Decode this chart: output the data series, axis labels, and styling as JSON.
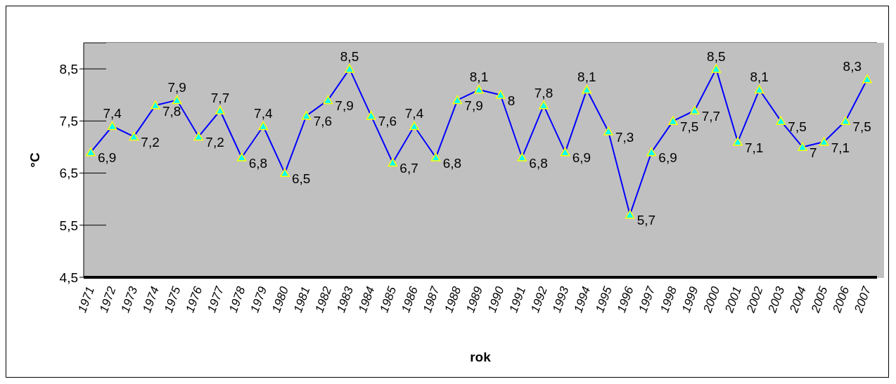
{
  "chart_data": {
    "type": "line",
    "xlabel": "rok",
    "ylabel": "°C",
    "categories": [
      "1971",
      "1972",
      "1973",
      "1974",
      "1975",
      "1976",
      "1977",
      "1978",
      "1979",
      "1980",
      "1981",
      "1982",
      "1983",
      "1984",
      "1985",
      "1986",
      "1987",
      "1988",
      "1989",
      "1990",
      "1991",
      "1992",
      "1993",
      "1994",
      "1995",
      "1996",
      "1997",
      "1998",
      "1999",
      "2000",
      "2001",
      "2002",
      "2003",
      "2004",
      "2005",
      "2006",
      "2007"
    ],
    "series": [
      {
        "color": "#0000ff",
        "values": [
          6.9,
          7.4,
          7.2,
          7.8,
          7.9,
          7.2,
          7.7,
          6.8,
          7.4,
          6.5,
          7.6,
          7.9,
          8.5,
          7.6,
          6.7,
          7.4,
          6.8,
          7.9,
          8.1,
          8,
          6.8,
          7.8,
          6.9,
          8.1,
          7.3,
          5.7,
          6.9,
          7.5,
          7.7,
          8.5,
          7.1,
          8.1,
          7.5,
          7,
          7.1,
          7.5,
          8.3
        ],
        "value_labels": [
          "6,9",
          "7,4",
          "7,2",
          "7,8",
          "7,9",
          "7,2",
          "7,7",
          "6,8",
          "7,4",
          "6,5",
          "7,6",
          "7,9",
          "8,5",
          "7,6",
          "6,7",
          "7,4",
          "6,8",
          "7,9",
          "8,1",
          "8",
          "6,8",
          "7,8",
          "6,9",
          "8,1",
          "7,3",
          "5,7",
          "6,9",
          "7,5",
          "7,7",
          "8,5",
          "7,1",
          "8,1",
          "7,5",
          "7",
          "7,1",
          "7,5",
          "8,3"
        ]
      }
    ],
    "ylim": [
      4.5,
      9
    ],
    "yticks": [
      {
        "value": 4.5,
        "label": "4,5"
      },
      {
        "value": 5.5,
        "label": "5,5"
      },
      {
        "value": 6.5,
        "label": "6,5"
      },
      {
        "value": 7.5,
        "label": "7,5"
      },
      {
        "value": 8.5,
        "label": "8,5"
      }
    ],
    "grid": "y",
    "marker": "triangle",
    "line_style": "solid",
    "legend": false
  }
}
